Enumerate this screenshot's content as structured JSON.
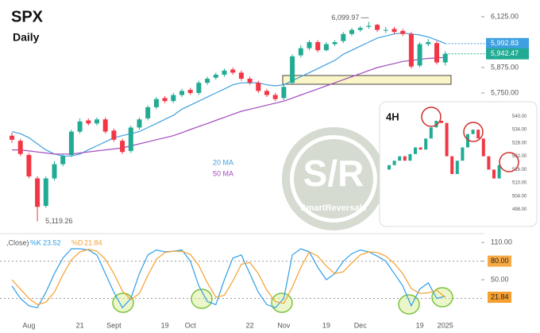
{
  "chart_data": [
    {
      "type": "candlestick",
      "title": "SPX",
      "subtitle": "Daily",
      "categories": [
        null,
        null,
        "Aug",
        null,
        null,
        null,
        null,
        null,
        "21",
        null,
        null,
        null,
        "Sept",
        null,
        null,
        null,
        null,
        null,
        "19",
        null,
        null,
        "Oct",
        null,
        null,
        null,
        null,
        null,
        null,
        "22",
        null,
        null,
        null,
        "Nov",
        null,
        null,
        null,
        null,
        "19",
        null,
        null,
        null,
        "Dec",
        null,
        null,
        null,
        null,
        null,
        null,
        "19",
        null,
        null,
        "2025"
      ],
      "open": [
        5540,
        5515,
        5445,
        5330,
        5195,
        5330,
        5400,
        5445,
        5560,
        5615,
        5600,
        5620,
        5565,
        5515,
        5465,
        5580,
        5625,
        5680,
        5725,
        5710,
        5740,
        5765,
        5750,
        5800,
        5825,
        5840,
        5865,
        5850,
        5820,
        5800,
        5760,
        5740,
        5725,
        5800,
        5935,
        5970,
        6000,
        5960,
        5990,
        6005,
        6040,
        6060,
        6075,
        6085,
        6060,
        6065,
        6055,
        6040,
        5885,
        5990,
        5995,
        5900
      ],
      "high": [
        5555,
        5525,
        5455,
        5340,
        5340,
        5415,
        5450,
        5570,
        5625,
        5625,
        5630,
        5630,
        5575,
        5525,
        5590,
        5630,
        5690,
        5730,
        5735,
        5750,
        5770,
        5775,
        5810,
        5830,
        5850,
        5870,
        5875,
        5860,
        5830,
        5810,
        5770,
        5750,
        5790,
        5940,
        5985,
        6010,
        6010,
        6000,
        6010,
        6050,
        6070,
        6080,
        6099.97,
        6090,
        6075,
        6075,
        6065,
        6050,
        6000,
        6015,
        6005,
        5955
      ],
      "low": [
        5505,
        5440,
        5330,
        5119.26,
        5185,
        5320,
        5390,
        5435,
        5550,
        5590,
        5590,
        5550,
        5510,
        5450,
        5455,
        5570,
        5615,
        5670,
        5700,
        5700,
        5730,
        5740,
        5740,
        5790,
        5815,
        5830,
        5840,
        5810,
        5790,
        5750,
        5730,
        5710,
        5715,
        5795,
        5925,
        5960,
        5950,
        5955,
        5980,
        5995,
        6030,
        6050,
        6065,
        6050,
        6045,
        6040,
        6030,
        5870,
        5875,
        5980,
        5890,
        5885
      ],
      "close": [
        5520,
        5450,
        5340,
        5190,
        5330,
        5400,
        5440,
        5560,
        5610,
        5600,
        5620,
        5560,
        5520,
        5460,
        5580,
        5620,
        5680,
        5720,
        5710,
        5740,
        5760,
        5750,
        5800,
        5820,
        5840,
        5860,
        5850,
        5820,
        5800,
        5760,
        5740,
        5720,
        5780,
        5930,
        5970,
        6000,
        5960,
        5990,
        6000,
        6040,
        6060,
        6070,
        6080,
        6060,
        6060,
        6050,
        6040,
        5880,
        5990,
        6000,
        5900,
        5942.47
      ],
      "up_color": "#22ab94",
      "down_color": "#f23645",
      "series": [
        {
          "name": "20 MA",
          "color": "#3ea0e0",
          "values": [
            5560,
            5550,
            5530,
            5500,
            5470,
            5450,
            5440,
            5440,
            5450,
            5470,
            5490,
            5510,
            5530,
            5540,
            5550,
            5560,
            5580,
            5600,
            5620,
            5640,
            5670,
            5690,
            5710,
            5730,
            5750,
            5770,
            5790,
            5800,
            5800,
            5800,
            5790,
            5785,
            5790,
            5810,
            5830,
            5850,
            5870,
            5890,
            5910,
            5940,
            5960,
            5980,
            6000,
            6020,
            6030,
            6040,
            6045,
            6040,
            6035,
            6025,
            6010,
            5992.83
          ]
        },
        {
          "name": "50 MA",
          "color": "#a14bbd",
          "values": [
            5470,
            5470,
            5465,
            5460,
            5455,
            5450,
            5450,
            5450,
            5455,
            5460,
            5465,
            5470,
            5475,
            5480,
            5490,
            5500,
            5510,
            5520,
            5530,
            5540,
            5555,
            5570,
            5585,
            5600,
            5615,
            5630,
            5645,
            5660,
            5670,
            5680,
            5690,
            5700,
            5710,
            5725,
            5740,
            5755,
            5770,
            5785,
            5800,
            5815,
            5830,
            5845,
            5860,
            5875,
            5885,
            5895,
            5905,
            5910,
            5915,
            5920,
            5922,
            5925
          ]
        }
      ],
      "ylim": [
        5074,
        6207
      ],
      "yticks": [
        {
          "value": 6125,
          "label": "6,125.00"
        },
        {
          "value": 5875,
          "label": "5,875.00"
        },
        {
          "value": 5750,
          "label": "5,750.00"
        }
      ],
      "value_labels": {
        "high_42": "6,099.97",
        "low_3": "5,119.26",
        "close_51": "5,942.47",
        "ma20_51": "5,992.83"
      }
    },
    {
      "type": "line",
      "indicator_label": ",Close)",
      "series": [
        {
          "name": "%K",
          "color": "#2e9ee8",
          "values": [
            40,
            20,
            8,
            5,
            30,
            60,
            85,
            100,
            100,
            98,
            90,
            60,
            30,
            5,
            20,
            60,
            90,
            98,
            95,
            96,
            98,
            80,
            40,
            15,
            10,
            50,
            85,
            90,
            60,
            30,
            10,
            5,
            20,
            90,
            100,
            95,
            70,
            50,
            60,
            80,
            92,
            98,
            95,
            88,
            80,
            60,
            40,
            8,
            35,
            45,
            20,
            23.52
          ]
        },
        {
          "name": "%D",
          "color": "#f5a030",
          "values": [
            50,
            35,
            20,
            10,
            14,
            30,
            58,
            82,
            95,
            99,
            96,
            83,
            60,
            32,
            18,
            28,
            57,
            83,
            94,
            96,
            96,
            91,
            73,
            45,
            22,
            25,
            48,
            75,
            78,
            60,
            33,
            15,
            12,
            38,
            70,
            95,
            88,
            72,
            60,
            63,
            77,
            90,
            95,
            94,
            88,
            76,
            60,
            36,
            28,
            29,
            33,
            21.84
          ]
        }
      ],
      "ylim": [
        -5,
        123
      ],
      "yticks": [
        {
          "value": 110,
          "label": "110.00"
        },
        {
          "value": 80,
          "label": "80.00"
        },
        {
          "value": 50,
          "label": "50.00"
        }
      ],
      "levels": [
        80,
        20
      ]
    },
    {
      "type": "candlestick",
      "title": "4H",
      "open": [
        516,
        518,
        520,
        522,
        520,
        523,
        526,
        525,
        530,
        535,
        538,
        537,
        522,
        514,
        520,
        526,
        532,
        534,
        530,
        522,
        516,
        512
      ],
      "close": [
        518,
        520,
        522,
        520,
        523,
        526,
        525,
        530,
        535,
        538,
        537,
        522,
        514,
        520,
        526,
        532,
        534,
        530,
        522,
        516,
        512,
        518
      ],
      "ylim": [
        495,
        543
      ],
      "yticks": [
        {
          "value": 540,
          "label": "540.00"
        },
        {
          "value": 534,
          "label": "534.00"
        },
        {
          "value": 528,
          "label": "528.00"
        },
        {
          "value": 522,
          "label": "522.00"
        },
        {
          "value": 516,
          "label": "516.00"
        },
        {
          "value": 510,
          "label": "510.00"
        },
        {
          "value": 504,
          "label": "504.00"
        },
        {
          "value": 498,
          "label": "498.00"
        }
      ]
    }
  ],
  "watermark": {
    "mark": "S/R",
    "name": "SmartReversals"
  }
}
